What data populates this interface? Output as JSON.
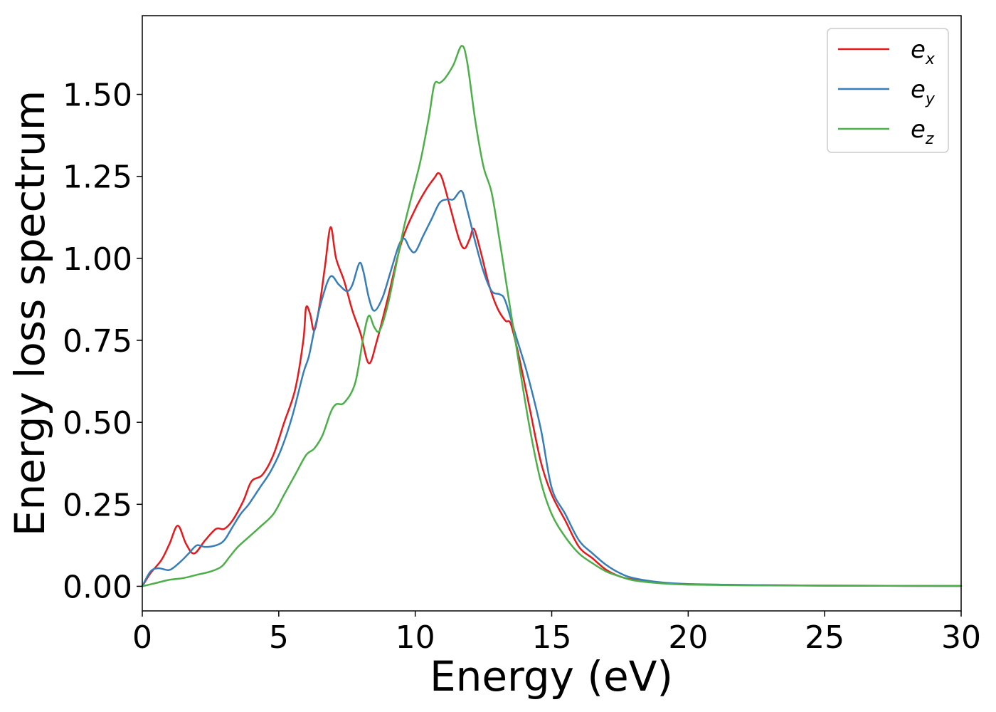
{
  "chart_data": {
    "type": "line",
    "xlabel": "Energy (eV)",
    "ylabel": "Energy loss spectrum",
    "xlim": [
      0,
      30
    ],
    "ylim": [
      -0.075,
      1.74
    ],
    "x_ticks": [
      0,
      5,
      10,
      15,
      20,
      25,
      30
    ],
    "x_tick_labels": [
      "0",
      "5",
      "10",
      "15",
      "20",
      "25",
      "30"
    ],
    "y_ticks": [
      0,
      0.25,
      0.5,
      0.75,
      1.0,
      1.25,
      1.5
    ],
    "y_tick_labels": [
      "0.00",
      "0.25",
      "0.50",
      "0.75",
      "1.00",
      "1.25",
      "1.50"
    ],
    "grid": false,
    "legend_position": "top-right",
    "series": [
      {
        "name": "e_x",
        "label_base": "e",
        "label_sub": "x",
        "color": "#e41a1c",
        "points": [
          [
            0,
            0
          ],
          [
            0.3,
            0.04
          ],
          [
            0.7,
            0.08
          ],
          [
            1.0,
            0.13
          ],
          [
            1.3,
            0.185
          ],
          [
            1.6,
            0.13
          ],
          [
            1.9,
            0.1
          ],
          [
            2.3,
            0.14
          ],
          [
            2.7,
            0.175
          ],
          [
            3.0,
            0.175
          ],
          [
            3.3,
            0.2
          ],
          [
            3.7,
            0.26
          ],
          [
            4.0,
            0.32
          ],
          [
            4.4,
            0.34
          ],
          [
            4.8,
            0.4
          ],
          [
            5.2,
            0.5
          ],
          [
            5.6,
            0.6
          ],
          [
            5.9,
            0.75
          ],
          [
            6.0,
            0.85
          ],
          [
            6.15,
            0.83
          ],
          [
            6.3,
            0.78
          ],
          [
            6.5,
            0.86
          ],
          [
            6.7,
            0.98
          ],
          [
            6.9,
            1.095
          ],
          [
            7.1,
            1.0
          ],
          [
            7.4,
            0.93
          ],
          [
            7.7,
            0.84
          ],
          [
            8.0,
            0.77
          ],
          [
            8.3,
            0.68
          ],
          [
            8.6,
            0.75
          ],
          [
            9.0,
            0.88
          ],
          [
            9.5,
            1.05
          ],
          [
            10.0,
            1.15
          ],
          [
            10.4,
            1.21
          ],
          [
            10.7,
            1.245
          ],
          [
            10.85,
            1.26
          ],
          [
            11.0,
            1.24
          ],
          [
            11.3,
            1.15
          ],
          [
            11.6,
            1.06
          ],
          [
            11.8,
            1.03
          ],
          [
            12.0,
            1.06
          ],
          [
            12.15,
            1.09
          ],
          [
            12.4,
            1.02
          ],
          [
            12.7,
            0.92
          ],
          [
            13.0,
            0.85
          ],
          [
            13.3,
            0.81
          ],
          [
            13.5,
            0.8
          ],
          [
            13.8,
            0.7
          ],
          [
            14.2,
            0.54
          ],
          [
            14.6,
            0.38
          ],
          [
            15.0,
            0.28
          ],
          [
            15.5,
            0.2
          ],
          [
            16.0,
            0.12
          ],
          [
            16.5,
            0.085
          ],
          [
            17.0,
            0.05
          ],
          [
            17.5,
            0.03
          ],
          [
            18.0,
            0.02
          ],
          [
            19.0,
            0.01
          ],
          [
            20.0,
            0.006
          ],
          [
            22.0,
            0.004
          ],
          [
            25.0,
            0.002
          ],
          [
            30.0,
            0.001
          ]
        ]
      },
      {
        "name": "e_y",
        "label_base": "e",
        "label_sub": "y",
        "color": "#377eb8",
        "points": [
          [
            0,
            0
          ],
          [
            0.3,
            0.045
          ],
          [
            0.6,
            0.055
          ],
          [
            1.0,
            0.05
          ],
          [
            1.4,
            0.075
          ],
          [
            1.7,
            0.1
          ],
          [
            2.0,
            0.125
          ],
          [
            2.3,
            0.12
          ],
          [
            2.7,
            0.125
          ],
          [
            3.0,
            0.14
          ],
          [
            3.3,
            0.18
          ],
          [
            3.6,
            0.22
          ],
          [
            3.9,
            0.25
          ],
          [
            4.3,
            0.3
          ],
          [
            4.7,
            0.35
          ],
          [
            5.1,
            0.42
          ],
          [
            5.5,
            0.52
          ],
          [
            5.9,
            0.65
          ],
          [
            6.1,
            0.7
          ],
          [
            6.3,
            0.78
          ],
          [
            6.6,
            0.88
          ],
          [
            6.9,
            0.945
          ],
          [
            7.2,
            0.92
          ],
          [
            7.5,
            0.9
          ],
          [
            7.7,
            0.92
          ],
          [
            7.95,
            0.985
          ],
          [
            8.1,
            0.96
          ],
          [
            8.3,
            0.88
          ],
          [
            8.5,
            0.84
          ],
          [
            8.8,
            0.88
          ],
          [
            9.1,
            0.96
          ],
          [
            9.4,
            1.04
          ],
          [
            9.6,
            1.06
          ],
          [
            9.8,
            1.03
          ],
          [
            10.0,
            1.02
          ],
          [
            10.3,
            1.07
          ],
          [
            10.6,
            1.12
          ],
          [
            10.9,
            1.17
          ],
          [
            11.2,
            1.18
          ],
          [
            11.4,
            1.18
          ],
          [
            11.7,
            1.205
          ],
          [
            11.9,
            1.15
          ],
          [
            12.2,
            1.05
          ],
          [
            12.5,
            0.96
          ],
          [
            12.8,
            0.9
          ],
          [
            13.1,
            0.89
          ],
          [
            13.3,
            0.87
          ],
          [
            13.7,
            0.76
          ],
          [
            14.1,
            0.65
          ],
          [
            14.6,
            0.48
          ],
          [
            15.0,
            0.3
          ],
          [
            15.5,
            0.22
          ],
          [
            16.0,
            0.14
          ],
          [
            16.5,
            0.1
          ],
          [
            17.0,
            0.065
          ],
          [
            17.5,
            0.04
          ],
          [
            18.0,
            0.025
          ],
          [
            19.0,
            0.012
          ],
          [
            20.0,
            0.007
          ],
          [
            22.0,
            0.004
          ],
          [
            25.0,
            0.002
          ],
          [
            30.0,
            0.001
          ]
        ]
      },
      {
        "name": "e_z",
        "label_base": "e",
        "label_sub": "z",
        "color": "#4daf4a",
        "points": [
          [
            0,
            0
          ],
          [
            0.5,
            0.01
          ],
          [
            1.0,
            0.02
          ],
          [
            1.5,
            0.025
          ],
          [
            2.0,
            0.035
          ],
          [
            2.5,
            0.045
          ],
          [
            2.9,
            0.06
          ],
          [
            3.2,
            0.09
          ],
          [
            3.5,
            0.12
          ],
          [
            3.9,
            0.15
          ],
          [
            4.3,
            0.18
          ],
          [
            4.8,
            0.22
          ],
          [
            5.2,
            0.28
          ],
          [
            5.6,
            0.34
          ],
          [
            6.0,
            0.4
          ],
          [
            6.3,
            0.42
          ],
          [
            6.6,
            0.46
          ],
          [
            6.9,
            0.53
          ],
          [
            7.1,
            0.555
          ],
          [
            7.4,
            0.56
          ],
          [
            7.8,
            0.62
          ],
          [
            8.1,
            0.76
          ],
          [
            8.3,
            0.825
          ],
          [
            8.5,
            0.79
          ],
          [
            8.7,
            0.78
          ],
          [
            9.0,
            0.86
          ],
          [
            9.3,
            0.98
          ],
          [
            9.6,
            1.1
          ],
          [
            9.9,
            1.2
          ],
          [
            10.2,
            1.3
          ],
          [
            10.5,
            1.43
          ],
          [
            10.7,
            1.53
          ],
          [
            10.9,
            1.535
          ],
          [
            11.1,
            1.55
          ],
          [
            11.4,
            1.59
          ],
          [
            11.7,
            1.648
          ],
          [
            11.9,
            1.6
          ],
          [
            12.2,
            1.42
          ],
          [
            12.5,
            1.28
          ],
          [
            12.8,
            1.2
          ],
          [
            13.1,
            1.05
          ],
          [
            13.4,
            0.89
          ],
          [
            13.8,
            0.68
          ],
          [
            14.2,
            0.48
          ],
          [
            14.6,
            0.32
          ],
          [
            15.0,
            0.22
          ],
          [
            15.5,
            0.15
          ],
          [
            16.0,
            0.1
          ],
          [
            16.5,
            0.07
          ],
          [
            17.0,
            0.045
          ],
          [
            17.5,
            0.03
          ],
          [
            18.0,
            0.018
          ],
          [
            19.0,
            0.009
          ],
          [
            20.0,
            0.005
          ],
          [
            22.0,
            0.003
          ],
          [
            25.0,
            0.002
          ],
          [
            30.0,
            0.001
          ]
        ]
      }
    ]
  }
}
